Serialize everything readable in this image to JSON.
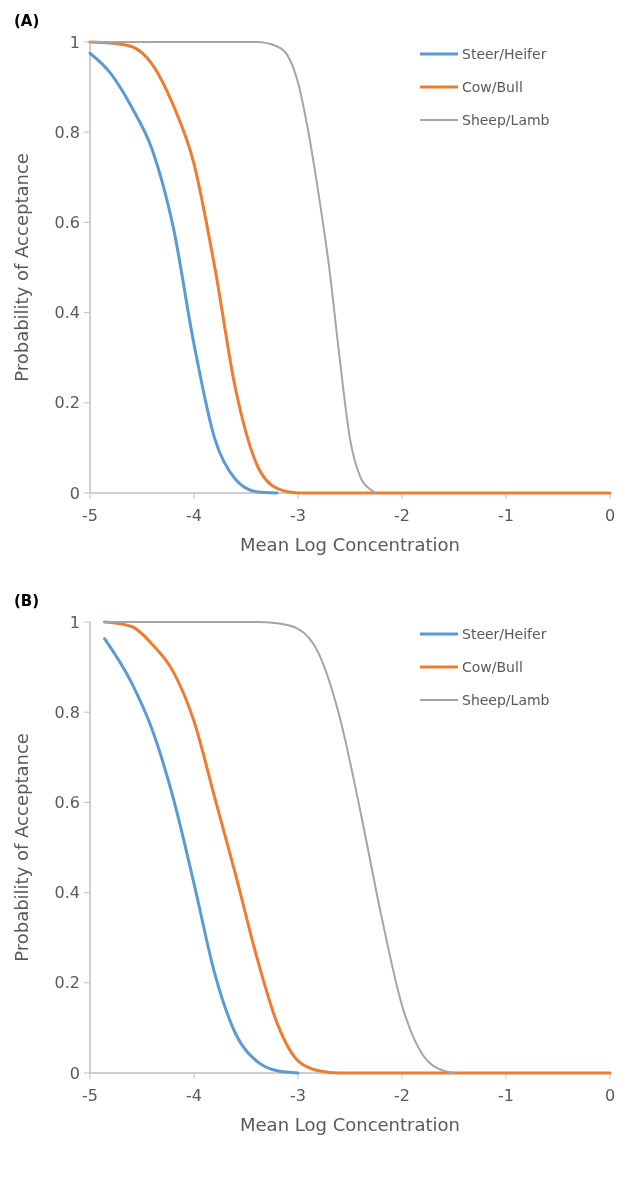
{
  "chart_data": [
    {
      "type": "line",
      "title": "(A)",
      "xlabel": "Mean Log Concentration",
      "ylabel": "Probability of Acceptance",
      "xlim": [
        -5,
        0
      ],
      "xticks": [
        -5,
        -4,
        -3,
        -2,
        -1,
        0
      ],
      "ylim": [
        0,
        1
      ],
      "yticks": [
        0,
        0.2,
        0.4,
        0.6,
        0.8,
        1
      ],
      "grid": false,
      "legend": "top right",
      "marker": "none",
      "line_style": "solid",
      "series": [
        {
          "name": "Steer/Heifer",
          "color": "#5b9bd5",
          "x": [
            -5,
            -4.8,
            -4.6,
            -4.4,
            -4.2,
            -4.0,
            -3.8,
            -3.6,
            -3.4,
            -3.2
          ],
          "values": [
            0.975,
            0.93,
            0.856,
            0.76,
            0.59,
            0.33,
            0.12,
            0.03,
            0.003,
            0
          ]
        },
        {
          "name": "Cow/Bull",
          "color": "#ed7d31",
          "x": [
            -5,
            -4.8,
            -4.6,
            -4.4,
            -4.2,
            -4.0,
            -3.8,
            -3.6,
            -3.4,
            -3.2,
            -3.0,
            -2,
            -1,
            0
          ],
          "values": [
            1,
            0.998,
            0.99,
            0.95,
            0.86,
            0.73,
            0.5,
            0.23,
            0.065,
            0.01,
            0,
            0,
            0,
            0
          ]
        },
        {
          "name": "Sheep/Lamb",
          "color": "#a5a5a5",
          "x": [
            -5,
            -3.4,
            -3.2,
            -3.1,
            -3.0,
            -2.9,
            -2.8,
            -2.7,
            -2.6,
            -2.5,
            -2.4,
            -2.3,
            -2.25
          ],
          "values": [
            1,
            1,
            0.99,
            0.97,
            0.91,
            0.8,
            0.66,
            0.5,
            0.3,
            0.12,
            0.035,
            0.007,
            0
          ]
        }
      ]
    },
    {
      "type": "line",
      "title": "(B)",
      "xlabel": "Mean Log Concentration",
      "ylabel": "Probability of Acceptance",
      "xlim": [
        -5,
        0
      ],
      "xticks": [
        -5,
        -4,
        -3,
        -2,
        -1,
        0
      ],
      "ylim": [
        0,
        1
      ],
      "yticks": [
        0,
        0.2,
        0.4,
        0.6,
        0.8,
        1
      ],
      "grid": false,
      "legend": "top right",
      "marker": "none",
      "line_style": "solid",
      "series": [
        {
          "name": "Steer/Heifer",
          "color": "#5b9bd5",
          "x": [
            -4.86,
            -4.6,
            -4.4,
            -4.2,
            -4.0,
            -3.8,
            -3.6,
            -3.4,
            -3.2,
            -3.0
          ],
          "values": [
            0.963,
            0.865,
            0.76,
            0.61,
            0.42,
            0.22,
            0.087,
            0.027,
            0.005,
            0
          ]
        },
        {
          "name": "Cow/Bull",
          "color": "#ed7d31",
          "x": [
            -4.86,
            -4.6,
            -4.4,
            -4.2,
            -4.0,
            -3.8,
            -3.6,
            -3.4,
            -3.2,
            -3.0,
            -2.8,
            -2.6,
            -1,
            0
          ],
          "values": [
            1,
            0.99,
            0.95,
            0.89,
            0.78,
            0.61,
            0.44,
            0.26,
            0.11,
            0.027,
            0.005,
            0,
            0,
            0
          ]
        },
        {
          "name": "Sheep/Lamb",
          "color": "#a5a5a5",
          "x": [
            -4.86,
            -3.4,
            -3.2,
            -3.0,
            -2.8,
            -2.6,
            -2.4,
            -2.2,
            -2.0,
            -1.8,
            -1.6,
            -1.5
          ],
          "values": [
            1,
            1,
            0.997,
            0.985,
            0.93,
            0.79,
            0.58,
            0.35,
            0.15,
            0.04,
            0.005,
            0
          ]
        }
      ]
    }
  ]
}
